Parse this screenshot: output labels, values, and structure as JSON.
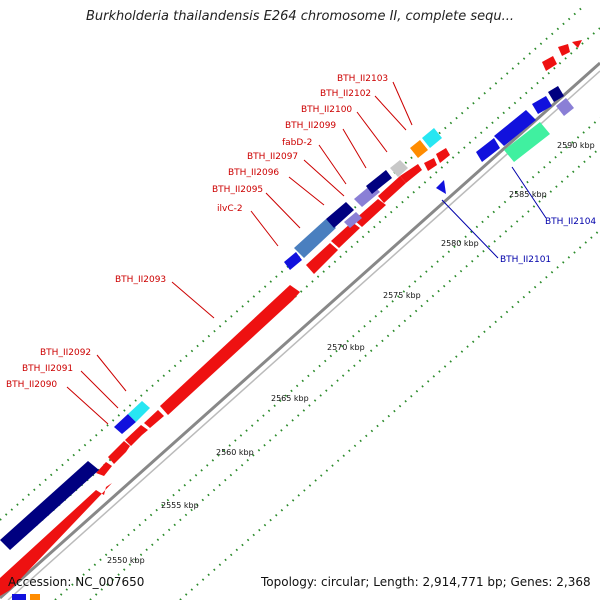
{
  "title": "Burkholderia thailandensis E264 chromosome II, complete sequ...",
  "footer": {
    "accession": "Accession: NC_007650",
    "summary": "Topology: circular; Length: 2,914,771 bp; Genes: 2,368"
  },
  "colors": {
    "forward_cds": "#ee1111",
    "reverse_cds": "#1111dd",
    "highlight_navy": "#000080",
    "steel_blue": "#4a7fbf",
    "light_purple": "#8a7fd6",
    "cyan": "#27e6f2",
    "orange": "#ff8c00",
    "gray": "#c8c8c8",
    "mint": "#40f0a0",
    "forward_label": "#cc0000",
    "reverse_label": "#0000aa",
    "kbp_dots": "#2a8a2a",
    "backbone": "#999999"
  },
  "kbp_ticks": [
    {
      "label": "2550 kbp",
      "pos": 2550
    },
    {
      "label": "2555 kbp",
      "pos": 2555
    },
    {
      "label": "2560 kbp",
      "pos": 2560
    },
    {
      "label": "2565 kbp",
      "pos": 2565
    },
    {
      "label": "2570 kbp",
      "pos": 2570
    },
    {
      "label": "2575 kbp",
      "pos": 2575
    },
    {
      "label": "2580 kbp",
      "pos": 2580
    },
    {
      "label": "2585 kbp",
      "pos": 2585
    },
    {
      "label": "2590 kbp",
      "pos": 2590
    }
  ],
  "forward_gene_labels": [
    {
      "name": "BTH_II2090"
    },
    {
      "name": "BTH_II2091"
    },
    {
      "name": "BTH_II2092"
    },
    {
      "name": "BTH_II2093"
    },
    {
      "name": "ilvC-2"
    },
    {
      "name": "BTH_II2095"
    },
    {
      "name": "BTH_II2096"
    },
    {
      "name": "BTH_II2097"
    },
    {
      "name": "fabD-2"
    },
    {
      "name": "BTH_II2099"
    },
    {
      "name": "BTH_II2100"
    },
    {
      "name": "BTH_II2102"
    },
    {
      "name": "BTH_II2103"
    }
  ],
  "reverse_gene_labels": [
    {
      "name": "BTH_II2101"
    },
    {
      "name": "BTH_II2104"
    }
  ]
}
